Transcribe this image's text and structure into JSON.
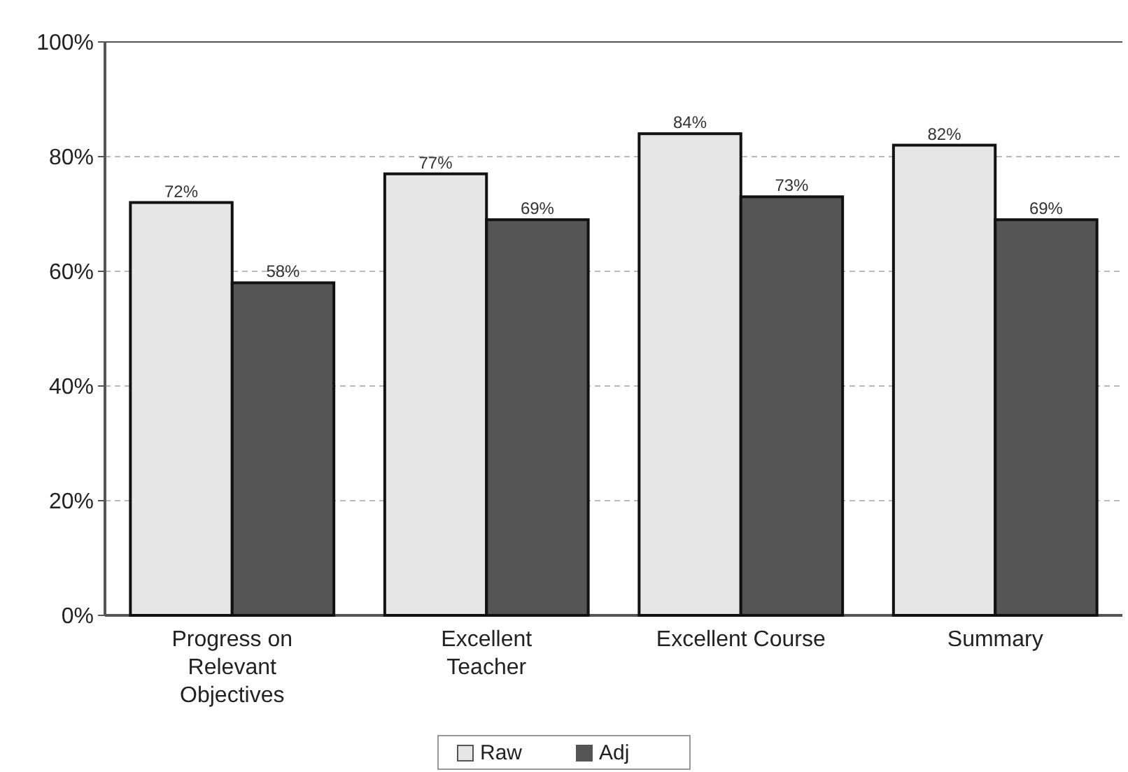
{
  "chart_data": {
    "type": "bar",
    "categories": [
      "Progress on Relevant Objectives",
      "Excellent Teacher",
      "Excellent Course",
      "Summary"
    ],
    "series": [
      {
        "name": "Raw",
        "color": "#e6e6e6",
        "values": [
          72,
          77,
          84,
          82
        ],
        "value_labels": [
          "72%",
          "77%",
          "84%",
          "82%"
        ]
      },
      {
        "name": "Adj",
        "color": "#555555",
        "values": [
          58,
          69,
          73,
          69
        ],
        "value_labels": [
          "58%",
          "69%",
          "73%",
          "69%"
        ]
      }
    ],
    "ylim": [
      0,
      100
    ],
    "yticks": [
      {
        "value": 0,
        "label": "0%"
      },
      {
        "value": 20,
        "label": "20%"
      },
      {
        "value": 40,
        "label": "40%"
      },
      {
        "value": 60,
        "label": "60%"
      },
      {
        "value": 80,
        "label": "80%"
      },
      {
        "value": 100,
        "label": "100%"
      }
    ],
    "grid": "y",
    "legend": "bottom"
  }
}
